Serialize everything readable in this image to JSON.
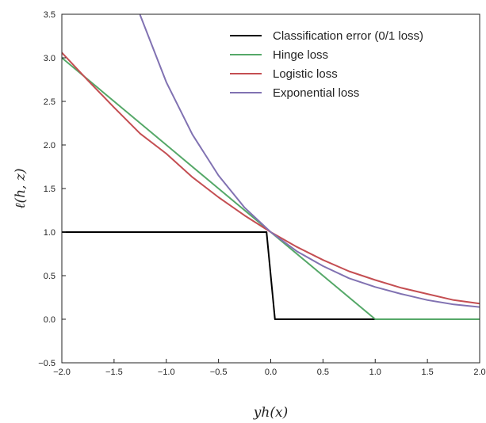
{
  "chart_data": {
    "type": "line",
    "xlabel": "yh(x)",
    "ylabel": "ℓ(h, z)",
    "xlim": [
      -2.0,
      2.0
    ],
    "ylim": [
      -0.5,
      3.5
    ],
    "grid": false,
    "legend_position": "top-right",
    "x_ticks": [
      "−2.0",
      "−1.5",
      "−1.0",
      "−0.5",
      "0.0",
      "0.5",
      "1.0",
      "1.5",
      "2.0"
    ],
    "y_ticks": [
      "−0.5",
      "0.0",
      "0.5",
      "1.0",
      "1.5",
      "2.0",
      "2.5",
      "3.0",
      "3.5"
    ],
    "series": [
      {
        "name": "Classification error  (0/1 loss)",
        "color": "#000000",
        "x": [
          -2.0,
          -0.04,
          0.04,
          2.0
        ],
        "y": [
          1.0,
          1.0,
          0.0,
          0.0
        ]
      },
      {
        "name": "Hinge loss",
        "color": "#55a868",
        "x": [
          -2.0,
          -1.5,
          -1.0,
          -0.5,
          0.0,
          0.5,
          1.0,
          1.5,
          2.0
        ],
        "y": [
          3.0,
          2.5,
          2.0,
          1.5,
          1.0,
          0.5,
          0.0,
          0.0,
          0.0
        ]
      },
      {
        "name": "Logistic loss",
        "color": "#c44e52",
        "x": [
          -2.0,
          -1.75,
          -1.5,
          -1.25,
          -1.0,
          -0.75,
          -0.5,
          -0.25,
          0.0,
          0.25,
          0.5,
          0.75,
          1.0,
          1.25,
          1.5,
          1.75,
          2.0
        ],
        "y": [
          3.06,
          2.74,
          2.43,
          2.13,
          1.9,
          1.63,
          1.4,
          1.19,
          1.0,
          0.83,
          0.68,
          0.55,
          0.45,
          0.36,
          0.29,
          0.22,
          0.18
        ]
      },
      {
        "name": "Exponential loss",
        "color": "#8172b2",
        "x": [
          -1.25,
          -1.0,
          -0.75,
          -0.5,
          -0.25,
          0.0,
          0.25,
          0.5,
          0.75,
          1.0,
          1.25,
          1.5,
          1.75,
          2.0
        ],
        "y": [
          3.49,
          2.72,
          2.12,
          1.65,
          1.28,
          1.0,
          0.78,
          0.61,
          0.47,
          0.37,
          0.29,
          0.22,
          0.17,
          0.14
        ]
      }
    ]
  }
}
